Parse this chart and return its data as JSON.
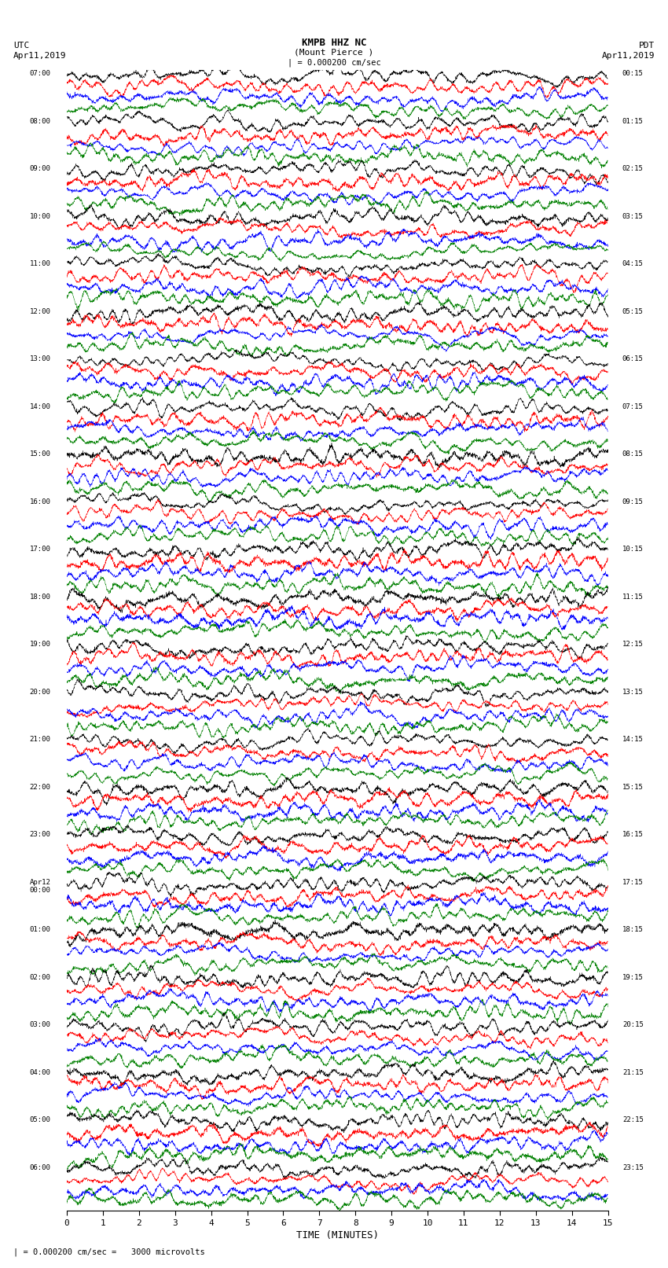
{
  "title_line1": "KMPB HHZ NC",
  "title_line2": "(Mount Pierce )",
  "scale_text": "| = 0.000200 cm/sec",
  "left_label_line1": "UTC",
  "left_label_line2": "Apr11,2019",
  "right_label_line1": "PDT",
  "right_label_line2": "Apr11,2019",
  "bottom_label": "TIME (MINUTES)",
  "bottom_note": "= 0.000200 cm/sec =   3000 microvolts",
  "xlabel_ticks": [
    0,
    1,
    2,
    3,
    4,
    5,
    6,
    7,
    8,
    9,
    10,
    11,
    12,
    13,
    14,
    15
  ],
  "utc_labels": [
    "07:00",
    "08:00",
    "09:00",
    "10:00",
    "11:00",
    "12:00",
    "13:00",
    "14:00",
    "15:00",
    "16:00",
    "17:00",
    "18:00",
    "19:00",
    "20:00",
    "21:00",
    "22:00",
    "23:00",
    "Apr12\n00:00",
    "01:00",
    "02:00",
    "03:00",
    "04:00",
    "05:00",
    "06:00"
  ],
  "pdt_labels": [
    "00:15",
    "01:15",
    "02:15",
    "03:15",
    "04:15",
    "05:15",
    "06:15",
    "07:15",
    "08:15",
    "09:15",
    "10:15",
    "11:15",
    "12:15",
    "13:15",
    "14:15",
    "15:15",
    "16:15",
    "17:15",
    "18:15",
    "19:15",
    "20:15",
    "21:15",
    "22:15",
    "23:15"
  ],
  "n_rows": 24,
  "traces_per_row": 4,
  "colors": [
    "black",
    "red",
    "blue",
    "green"
  ],
  "bg_color": "#ffffff",
  "seed": 42
}
